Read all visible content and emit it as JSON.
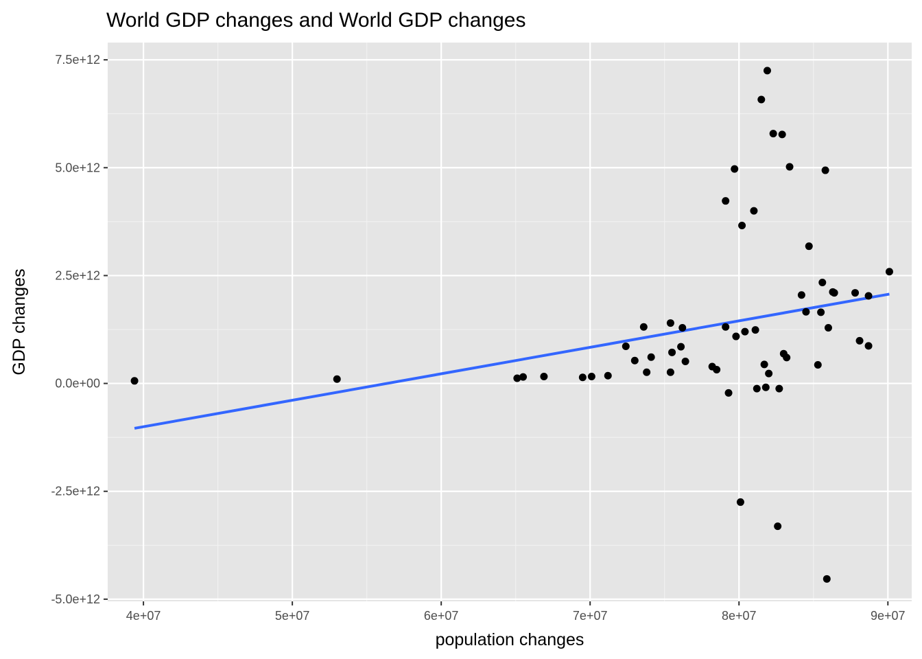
{
  "chart_data": {
    "type": "scatter",
    "title": "World GDP changes and World GDP changes",
    "xlabel": "population changes",
    "ylabel": "GDP changes",
    "xlim": [
      37600000,
      91600000
    ],
    "ylim": [
      -5050000000000.0,
      7900000000000.0
    ],
    "x_ticks": [
      {
        "value": 40000000,
        "label": "4e+07"
      },
      {
        "value": 50000000,
        "label": "5e+07"
      },
      {
        "value": 60000000,
        "label": "6e+07"
      },
      {
        "value": 70000000,
        "label": "7e+07"
      },
      {
        "value": 80000000,
        "label": "8e+07"
      },
      {
        "value": 90000000,
        "label": "9e+07"
      }
    ],
    "y_ticks": [
      {
        "value": -5000000000000.0,
        "label": "-5.0e+12"
      },
      {
        "value": -2500000000000.0,
        "label": "-2.5e+12"
      },
      {
        "value": 0,
        "label": "0.0e+00"
      },
      {
        "value": 2500000000000.0,
        "label": "2.5e+12"
      },
      {
        "value": 5000000000000.0,
        "label": "5.0e+12"
      },
      {
        "value": 7500000000000.0,
        "label": "7.5e+12"
      }
    ],
    "grid": true,
    "background_color": "#e5e5e5",
    "point_color": "#000000",
    "trend_color": "#3366ff",
    "points": [
      [
        39400000,
        60000000000.0
      ],
      [
        53000000,
        100000000000.0
      ],
      [
        65100000,
        120000000000.0
      ],
      [
        65500000,
        150000000000.0
      ],
      [
        66900000,
        160000000000.0
      ],
      [
        69500000,
        140000000000.0
      ],
      [
        70100000,
        160000000000.0
      ],
      [
        71200000,
        180000000000.0
      ],
      [
        72400000,
        860000000000.0
      ],
      [
        73000000,
        530000000000.0
      ],
      [
        73600000,
        1310000000000.0
      ],
      [
        73800000,
        260000000000.0
      ],
      [
        74100000,
        610000000000.0
      ],
      [
        75400000,
        1400000000000.0
      ],
      [
        75400000,
        260000000000.0
      ],
      [
        75500000,
        720000000000.0
      ],
      [
        76100000,
        850000000000.0
      ],
      [
        76200000,
        1290000000000.0
      ],
      [
        76400000,
        510000000000.0
      ],
      [
        78200000,
        390000000000.0
      ],
      [
        78500000,
        320000000000.0
      ],
      [
        79100000,
        4230000000000.0
      ],
      [
        79100000,
        1310000000000.0
      ],
      [
        79300000,
        -220000000000.0
      ],
      [
        79700000,
        4970000000000.0
      ],
      [
        79800000,
        1090000000000.0
      ],
      [
        80100000,
        -2750000000000.0
      ],
      [
        80200000,
        3660000000000.0
      ],
      [
        80400000,
        1200000000000.0
      ],
      [
        81000000,
        4000000000000.0
      ],
      [
        81100000,
        1240000000000.0
      ],
      [
        81200000,
        -120000000000.0
      ],
      [
        81500000,
        6580000000000.0
      ],
      [
        81700000,
        440000000000.0
      ],
      [
        81800000,
        -90000000000.0
      ],
      [
        81900000,
        7250000000000.0
      ],
      [
        82000000,
        230000000000.0
      ],
      [
        82300000,
        5790000000000.0
      ],
      [
        82600000,
        -3310000000000.0
      ],
      [
        82700000,
        -120000000000.0
      ],
      [
        82900000,
        5770000000000.0
      ],
      [
        83000000,
        690000000000.0
      ],
      [
        83200000,
        600000000000.0
      ],
      [
        83400000,
        5020000000000.0
      ],
      [
        84200000,
        2050000000000.0
      ],
      [
        84500000,
        1660000000000.0
      ],
      [
        84700000,
        3180000000000.0
      ],
      [
        85300000,
        430000000000.0
      ],
      [
        85500000,
        1650000000000.0
      ],
      [
        85600000,
        2340000000000.0
      ],
      [
        85800000,
        4940000000000.0
      ],
      [
        85900000,
        -4530000000000.0
      ],
      [
        86000000,
        1290000000000.0
      ],
      [
        86300000,
        2120000000000.0
      ],
      [
        86400000,
        2100000000000.0
      ],
      [
        87800000,
        2100000000000.0
      ],
      [
        88100000,
        990000000000.0
      ],
      [
        88700000,
        870000000000.0
      ],
      [
        88700000,
        2030000000000.0
      ],
      [
        90100000,
        2590000000000.0
      ]
    ],
    "trend_line": {
      "type": "linear",
      "x": [
        39400000,
        90100000
      ],
      "y": [
        -1040000000000.0,
        2070000000000.0
      ]
    }
  }
}
